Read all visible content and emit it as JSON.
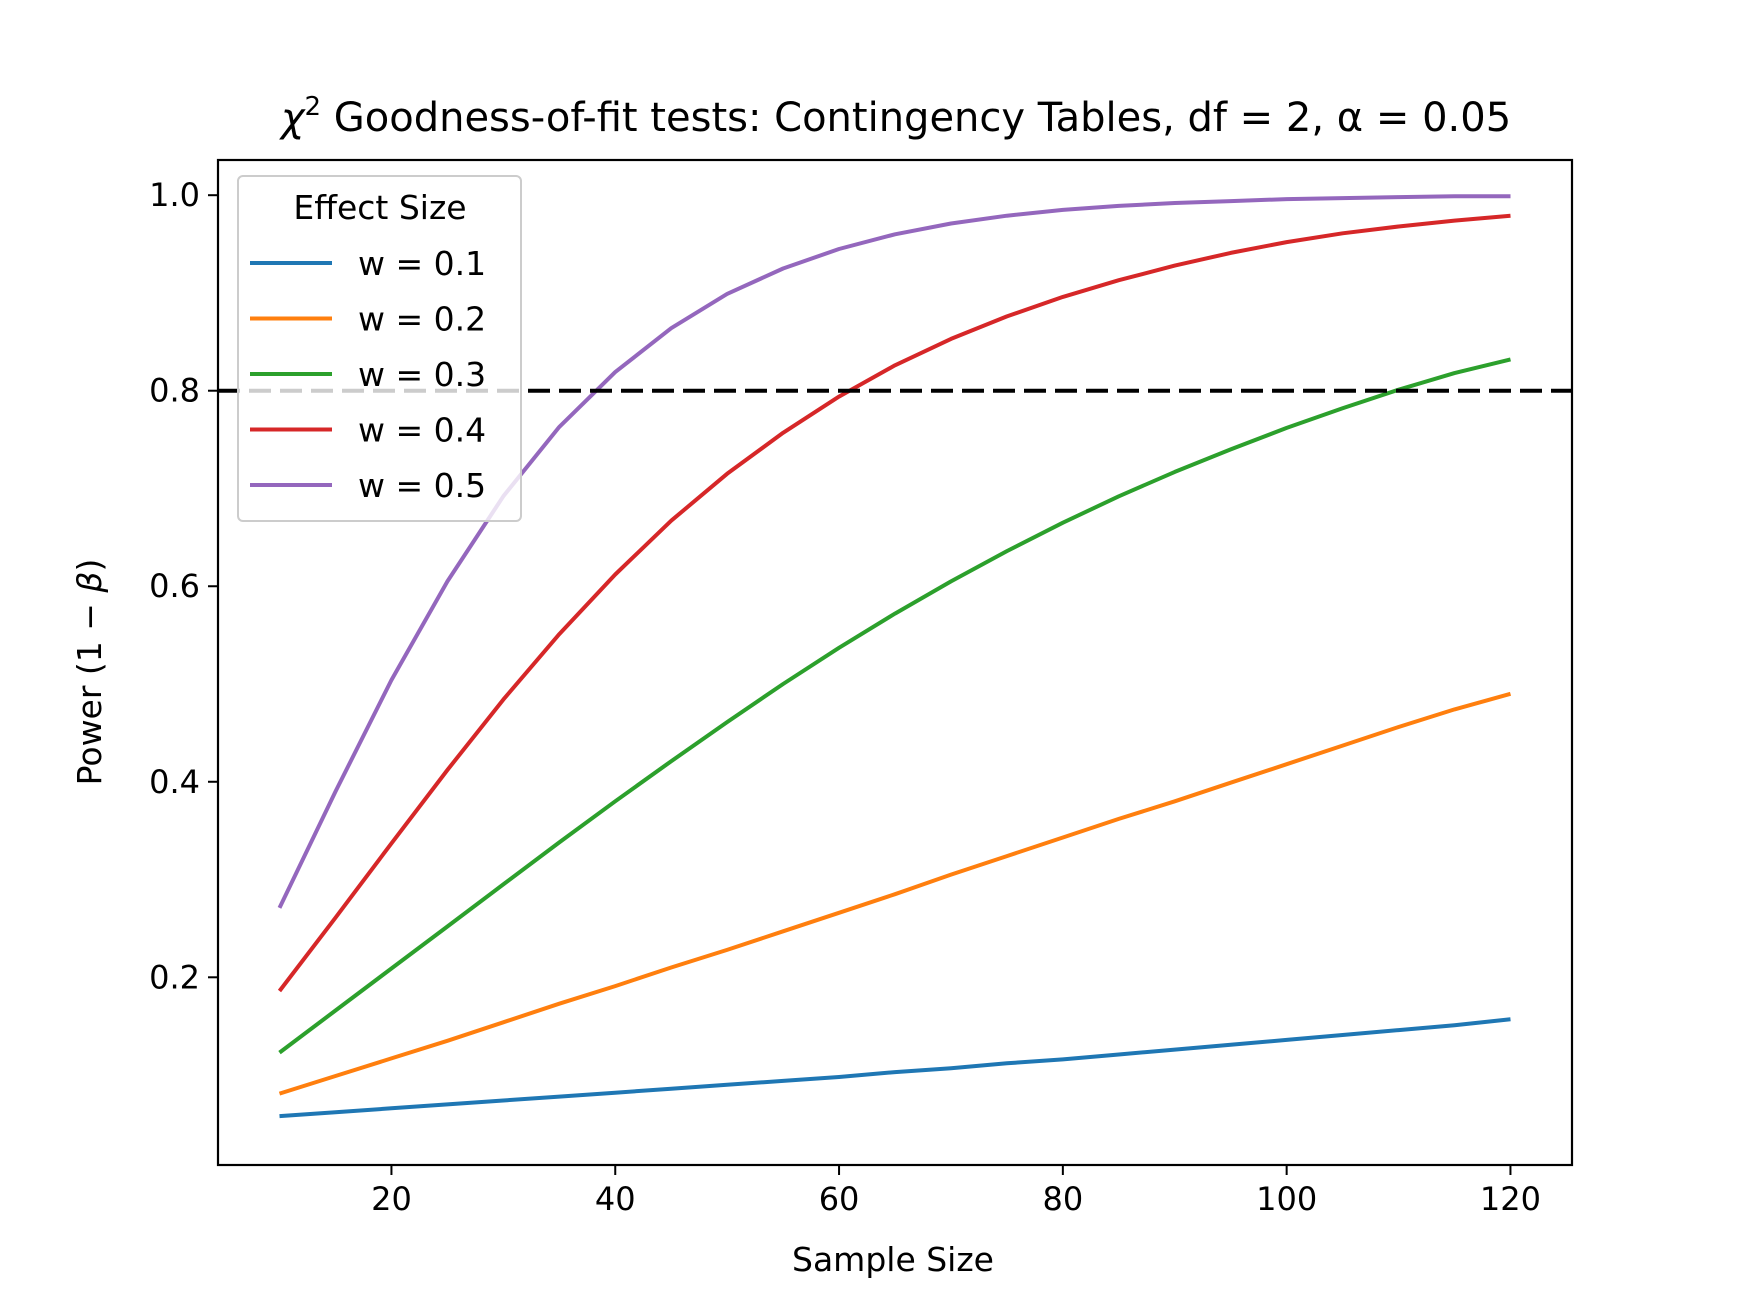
{
  "chart_data": {
    "type": "line",
    "title_prefix": "χ",
    "title_sup": "2",
    "title_main": " Goodness-of-fit tests: Contingency Tables, df = 2, ",
    "title_alpha": "α = 0.05",
    "xlabel": "Sample Size",
    "ylabel_prefix": "Power (1 − ",
    "ylabel_beta": "β",
    "ylabel_suffix": ")",
    "xlim": [
      4.5,
      125.5
    ],
    "ylim": [
      0.008,
      1.036
    ],
    "xticks": [
      20,
      40,
      60,
      80,
      100,
      120
    ],
    "xtick_labels": [
      "20",
      "40",
      "60",
      "80",
      "100",
      "120"
    ],
    "yticks": [
      0.2,
      0.4,
      0.6,
      0.8,
      1.0
    ],
    "ytick_labels": [
      "0.2",
      "0.4",
      "0.6",
      "0.8",
      "1.0"
    ],
    "reference_line": {
      "y": 0.8,
      "style": "dashed",
      "color": "#000000"
    },
    "legend": {
      "title": "Effect Size",
      "placement": "upper-left"
    },
    "grid": false,
    "x": [
      10,
      15,
      20,
      25,
      30,
      35,
      40,
      45,
      50,
      55,
      60,
      65,
      70,
      75,
      80,
      85,
      90,
      95,
      100,
      105,
      110,
      115,
      120
    ],
    "series": [
      {
        "name": "w = 0.1",
        "color": "#1f77b4",
        "values": [
          0.058,
          0.062,
          0.066,
          0.07,
          0.074,
          0.078,
          0.082,
          0.086,
          0.09,
          0.094,
          0.098,
          0.103,
          0.107,
          0.112,
          0.116,
          0.121,
          0.126,
          0.131,
          0.136,
          0.141,
          0.146,
          0.151,
          0.157
        ]
      },
      {
        "name": "w = 0.2",
        "color": "#ff7f0e",
        "values": [
          0.081,
          0.099,
          0.117,
          0.135,
          0.154,
          0.173,
          0.191,
          0.21,
          0.228,
          0.247,
          0.266,
          0.285,
          0.305,
          0.324,
          0.343,
          0.362,
          0.38,
          0.399,
          0.418,
          0.437,
          0.456,
          0.474,
          0.49
        ]
      },
      {
        "name": "w = 0.3",
        "color": "#2ca02c",
        "values": [
          0.123,
          0.166,
          0.209,
          0.252,
          0.295,
          0.338,
          0.38,
          0.421,
          0.461,
          0.5,
          0.537,
          0.572,
          0.605,
          0.636,
          0.665,
          0.692,
          0.717,
          0.74,
          0.762,
          0.782,
          0.801,
          0.818,
          0.832
        ]
      },
      {
        "name": "w = 0.4",
        "color": "#d62728",
        "values": [
          0.186,
          0.261,
          0.337,
          0.412,
          0.484,
          0.551,
          0.612,
          0.667,
          0.715,
          0.757,
          0.794,
          0.826,
          0.853,
          0.876,
          0.896,
          0.913,
          0.928,
          0.941,
          0.952,
          0.961,
          0.968,
          0.974,
          0.979
        ]
      },
      {
        "name": "w = 0.5",
        "color": "#9467bd",
        "values": [
          0.271,
          0.39,
          0.504,
          0.605,
          0.692,
          0.763,
          0.819,
          0.864,
          0.899,
          0.925,
          0.945,
          0.96,
          0.971,
          0.979,
          0.985,
          0.989,
          0.992,
          0.994,
          0.996,
          0.997,
          0.998,
          0.999,
          0.999
        ]
      }
    ]
  }
}
